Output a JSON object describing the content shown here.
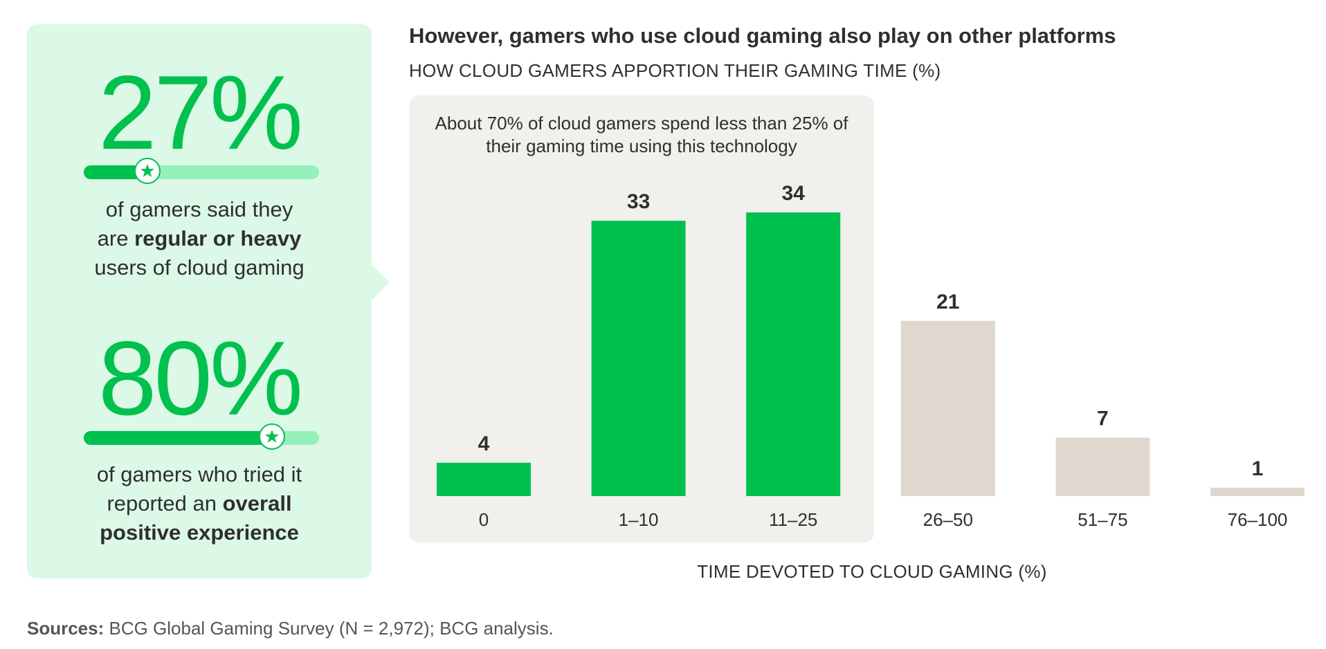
{
  "left_panel": {
    "stat1": {
      "value_text": "27%",
      "value": 27,
      "line1": "of gamers said they",
      "line2_pre": "are ",
      "line2_bold": "regular or heavy",
      "line3": "users of cloud gaming"
    },
    "stat2": {
      "value_text": "80%",
      "value": 80,
      "line1": "of gamers who tried it",
      "line2_pre": "reported an ",
      "line2_bold": "overall",
      "line3_bold": "positive experience"
    },
    "icon": "star-icon"
  },
  "headline": "However, gamers who use cloud gaming also play on other platforms",
  "subtitle": "HOW CLOUD GAMERS APPORTION THEIR GAMING TIME (%)",
  "annotation": {
    "line1": "About 70% of cloud gamers spend less than 25% of",
    "line2": "their gaming time using this technology"
  },
  "sources": {
    "label": "Sources:",
    "text": " BCG Global Gaming Survey (N = 2,972); BCG analysis."
  },
  "colors": {
    "green": "#00c04e",
    "light_green": "#95f1b9",
    "panel_green": "#dcf9e8",
    "beige": "#e0d8cf",
    "highlight_box": "#f1f0ed",
    "text": "#2f2f2f"
  },
  "chart_data": {
    "type": "bar",
    "title": "HOW CLOUD GAMERS APPORTION THEIR GAMING TIME (%)",
    "xlabel": "TIME DEVOTED TO CLOUD GAMING (%)",
    "ylabel": "",
    "categories": [
      "0",
      "1–10",
      "11–25",
      "26–50",
      "51–75",
      "76–100"
    ],
    "values": [
      4,
      33,
      34,
      21,
      7,
      1
    ],
    "highlighted": [
      true,
      true,
      true,
      false,
      false,
      false
    ],
    "ylim": [
      0,
      34
    ],
    "grid": false,
    "annotation": "About 70% of cloud gamers spend less than 25% of their gaming time using this technology"
  }
}
